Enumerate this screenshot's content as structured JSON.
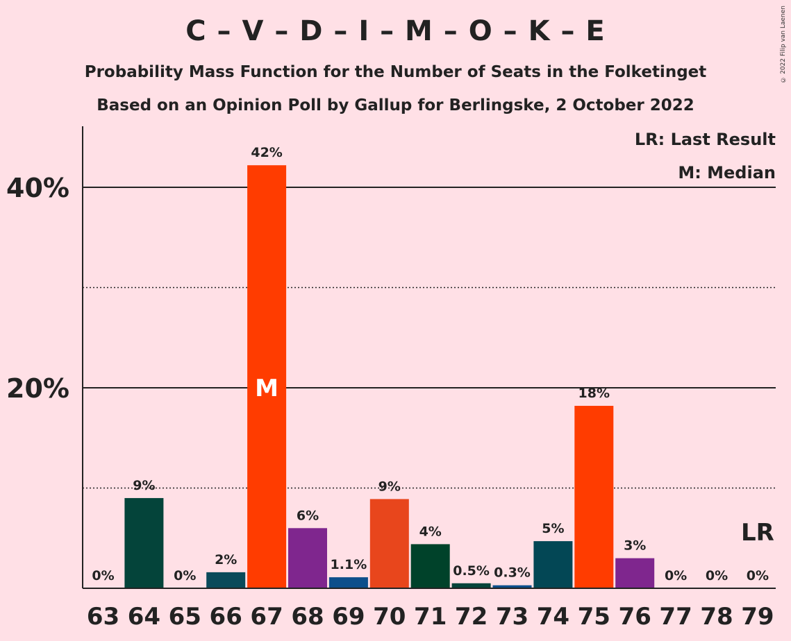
{
  "header": {
    "title": "C – V – D – I – M – O – K – E",
    "subtitle1": "Probability Mass Function for the Number of Seats in the Folketinget",
    "subtitle2": "Based on an Opinion Poll by Gallup for Berlingske, 2 October 2022",
    "copyright": "© 2022 Filip van Laenen"
  },
  "legend": {
    "last_result": "LR: Last Result",
    "median": "M: Median"
  },
  "chart_data": {
    "type": "bar",
    "categories": [
      "63",
      "64",
      "65",
      "66",
      "67",
      "68",
      "69",
      "70",
      "71",
      "72",
      "73",
      "74",
      "75",
      "76",
      "77",
      "78",
      "79"
    ],
    "values": [
      0,
      9,
      0,
      1.6,
      42.2,
      6,
      1.1,
      8.9,
      4.4,
      0.5,
      0.3,
      4.7,
      18.2,
      3,
      0,
      0,
      0
    ],
    "labels": [
      "0%",
      "9%",
      "0%",
      "2%",
      "42%",
      "6%",
      "1.1%",
      "9%",
      "4%",
      "0.5%",
      "0.3%",
      "5%",
      "18%",
      "3%",
      "0%",
      "0%",
      "0%"
    ],
    "colors": [
      "#04443A",
      "#04443A",
      "#04443A",
      "#0A4A5A",
      "#FF3C00",
      "#7F268E",
      "#0D4F8B",
      "#E8461C",
      "#00422A",
      "#04443A",
      "#0D4F8B",
      "#034755",
      "#FF3C00",
      "#7F268E",
      "#04443A",
      "#04443A",
      "#04443A"
    ],
    "ylim": [
      0,
      46
    ],
    "yticks": [
      {
        "value": 20,
        "label": "20%"
      },
      {
        "value": 40,
        "label": "40%"
      }
    ],
    "minor_gridlines": [
      10,
      30
    ],
    "median_category": "67",
    "median_marker": "M",
    "last_result_category": "79",
    "last_result_marker": "LR"
  }
}
